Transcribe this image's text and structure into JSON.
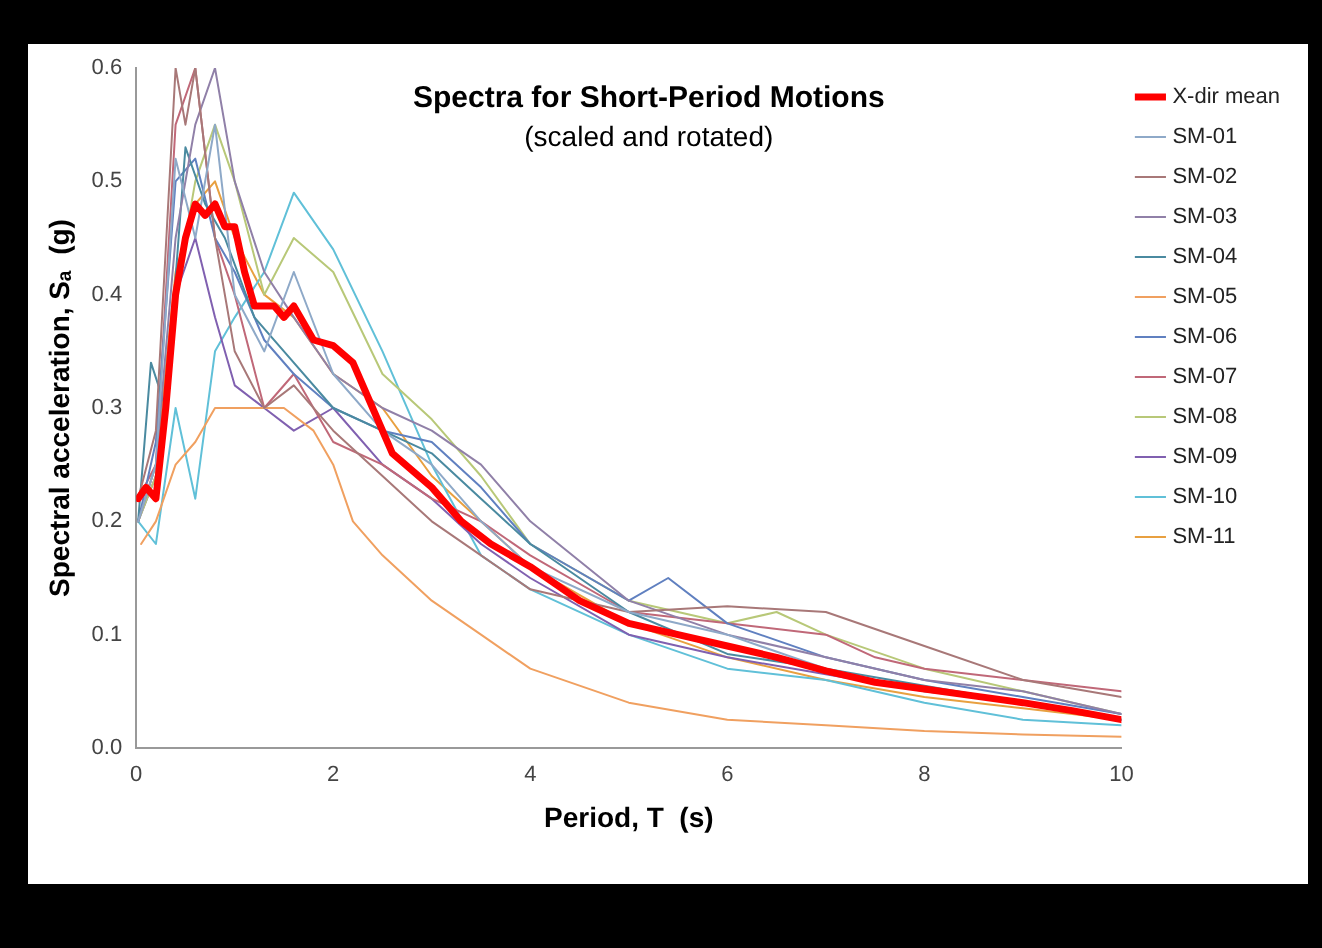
{
  "chart_data": {
    "type": "line",
    "title": "Spectra for Short-Period Motions",
    "subtitle": "(scaled and rotated)",
    "xlabel": "Period, T  (s)",
    "ylabel": "Spectral acceleration, Sₐ  (g)",
    "xlim": [
      0,
      10
    ],
    "xticks": [
      0,
      2,
      4,
      6,
      8,
      10
    ],
    "ylim": [
      0,
      0.6
    ],
    "yticks": [
      {
        "value": 0,
        "label": "0.0"
      },
      0.1,
      0.2,
      0.3,
      0.4,
      0.5,
      0.6
    ],
    "legend": "right",
    "marker": "none",
    "line_style": "solid",
    "grid": false,
    "series": [
      {
        "name": "X-dir mean",
        "color": "#ff0000",
        "x": [
          0.02,
          0.1,
          0.2,
          0.3,
          0.4,
          0.5,
          0.6,
          0.7,
          0.8,
          0.9,
          1.0,
          1.1,
          1.2,
          1.4,
          1.5,
          1.6,
          1.8,
          2.0,
          2.2,
          2.4,
          2.6,
          2.8,
          3.0,
          3.3,
          3.6,
          4.0,
          4.5,
          5.0,
          5.5,
          6.0,
          6.5,
          7.0,
          7.5,
          8.0,
          8.5,
          9.0,
          9.5,
          10
        ],
        "values": [
          0.22,
          0.23,
          0.22,
          0.3,
          0.4,
          0.45,
          0.48,
          0.47,
          0.48,
          0.46,
          0.46,
          0.42,
          0.39,
          0.39,
          0.38,
          0.39,
          0.36,
          0.355,
          0.34,
          0.3,
          0.26,
          0.245,
          0.23,
          0.2,
          0.18,
          0.16,
          0.13,
          0.11,
          0.1,
          0.09,
          0.08,
          0.068,
          0.058,
          0.052,
          0.046,
          0.04,
          0.033,
          0.025
        ]
      },
      {
        "name": "SM-01",
        "color": "#8ea9c8",
        "x": [
          0.02,
          0.2,
          0.4,
          0.6,
          0.8,
          1.0,
          1.3,
          1.6,
          2.0,
          2.5,
          3.0,
          3.5,
          4.0,
          5.0,
          6.0,
          7.0,
          8.0,
          9.0,
          10
        ],
        "values": [
          0.2,
          0.25,
          0.52,
          0.45,
          0.55,
          0.4,
          0.35,
          0.42,
          0.33,
          0.28,
          0.25,
          0.2,
          0.16,
          0.12,
          0.1,
          0.07,
          0.05,
          0.04,
          0.025
        ]
      },
      {
        "name": "SM-02",
        "color": "#a87878",
        "x": [
          0.02,
          0.2,
          0.4,
          0.5,
          0.6,
          0.8,
          1.0,
          1.3,
          1.6,
          2.0,
          2.5,
          3.0,
          3.5,
          4.0,
          5.0,
          6.0,
          7.0,
          8.0,
          9.0,
          10
        ],
        "values": [
          0.22,
          0.28,
          0.6,
          0.55,
          0.6,
          0.45,
          0.35,
          0.3,
          0.32,
          0.28,
          0.24,
          0.2,
          0.17,
          0.14,
          0.12,
          0.125,
          0.12,
          0.09,
          0.06,
          0.045
        ]
      },
      {
        "name": "SM-03",
        "color": "#9080a8",
        "x": [
          0.02,
          0.2,
          0.4,
          0.6,
          0.8,
          1.0,
          1.3,
          1.6,
          2.0,
          2.5,
          3.0,
          3.5,
          4.0,
          5.0,
          6.0,
          7.0,
          8.0,
          9.0,
          10
        ],
        "values": [
          0.2,
          0.25,
          0.45,
          0.55,
          0.6,
          0.5,
          0.42,
          0.38,
          0.33,
          0.3,
          0.28,
          0.25,
          0.2,
          0.13,
          0.1,
          0.08,
          0.06,
          0.05,
          0.03
        ]
      },
      {
        "name": "SM-04",
        "color": "#4a8aa0",
        "x": [
          0.02,
          0.15,
          0.3,
          0.5,
          0.7,
          0.9,
          1.2,
          1.5,
          2.0,
          2.5,
          3.0,
          3.5,
          4.0,
          5.0,
          6.0,
          7.0,
          8.0,
          9.0,
          10
        ],
        "values": [
          0.2,
          0.34,
          0.3,
          0.53,
          0.48,
          0.45,
          0.38,
          0.35,
          0.3,
          0.28,
          0.26,
          0.22,
          0.18,
          0.12,
          0.083,
          0.07,
          0.055,
          0.04,
          0.025
        ]
      },
      {
        "name": "SM-05",
        "color": "#f0a060",
        "x": [
          0.05,
          0.2,
          0.4,
          0.6,
          0.8,
          1.0,
          1.5,
          1.8,
          2.0,
          2.2,
          2.5,
          3.0,
          3.5,
          4.0,
          5.0,
          6.0,
          7.0,
          8.0,
          9.0,
          10
        ],
        "values": [
          0.18,
          0.2,
          0.25,
          0.27,
          0.3,
          0.3,
          0.3,
          0.28,
          0.25,
          0.2,
          0.17,
          0.13,
          0.1,
          0.07,
          0.04,
          0.025,
          0.02,
          0.015,
          0.012,
          0.01
        ]
      },
      {
        "name": "SM-06",
        "color": "#6080c0",
        "x": [
          0.02,
          0.2,
          0.4,
          0.6,
          0.8,
          1.0,
          1.3,
          1.6,
          2.0,
          2.5,
          3.0,
          3.5,
          4.0,
          5.0,
          5.4,
          6.0,
          7.0,
          8.0,
          9.0,
          10
        ],
        "values": [
          0.2,
          0.27,
          0.5,
          0.52,
          0.45,
          0.42,
          0.36,
          0.33,
          0.3,
          0.28,
          0.27,
          0.23,
          0.18,
          0.13,
          0.15,
          0.11,
          0.08,
          0.06,
          0.045,
          0.03
        ]
      },
      {
        "name": "SM-07",
        "color": "#c06878",
        "x": [
          0.02,
          0.2,
          0.4,
          0.6,
          0.8,
          1.0,
          1.3,
          1.6,
          2.0,
          2.5,
          3.0,
          3.5,
          4.0,
          5.0,
          6.0,
          7.0,
          7.5,
          8.0,
          9.0,
          10
        ],
        "values": [
          0.22,
          0.25,
          0.55,
          0.6,
          0.45,
          0.4,
          0.3,
          0.33,
          0.27,
          0.25,
          0.22,
          0.2,
          0.17,
          0.12,
          0.11,
          0.1,
          0.08,
          0.07,
          0.06,
          0.05
        ]
      },
      {
        "name": "SM-08",
        "color": "#b8c878",
        "x": [
          0.02,
          0.2,
          0.4,
          0.6,
          0.8,
          1.0,
          1.3,
          1.6,
          2.0,
          2.5,
          3.0,
          3.5,
          4.0,
          5.0,
          6.0,
          6.5,
          7.0,
          8.0,
          9.0,
          10
        ],
        "values": [
          0.2,
          0.24,
          0.4,
          0.5,
          0.55,
          0.5,
          0.4,
          0.45,
          0.42,
          0.33,
          0.29,
          0.24,
          0.18,
          0.13,
          0.11,
          0.12,
          0.1,
          0.07,
          0.05,
          0.03
        ]
      },
      {
        "name": "SM-09",
        "color": "#8060b0",
        "x": [
          0.02,
          0.2,
          0.4,
          0.6,
          0.8,
          1.0,
          1.3,
          1.6,
          2.0,
          2.5,
          3.0,
          3.5,
          4.0,
          5.0,
          6.0,
          7.0,
          8.0,
          9.0,
          10
        ],
        "values": [
          0.2,
          0.24,
          0.4,
          0.45,
          0.38,
          0.32,
          0.3,
          0.28,
          0.3,
          0.25,
          0.22,
          0.18,
          0.15,
          0.1,
          0.08,
          0.065,
          0.05,
          0.04,
          0.025
        ]
      },
      {
        "name": "SM-10",
        "color": "#60c0d8",
        "x": [
          0.02,
          0.2,
          0.4,
          0.6,
          0.8,
          1.0,
          1.3,
          1.6,
          2.0,
          2.5,
          3.0,
          3.5,
          4.0,
          5.0,
          6.0,
          7.0,
          8.0,
          9.0,
          10
        ],
        "values": [
          0.2,
          0.18,
          0.3,
          0.22,
          0.35,
          0.38,
          0.42,
          0.49,
          0.44,
          0.35,
          0.25,
          0.17,
          0.14,
          0.1,
          0.07,
          0.06,
          0.04,
          0.025,
          0.02
        ]
      },
      {
        "name": "SM-11",
        "color": "#e8a040",
        "x": [
          0.02,
          0.2,
          0.4,
          0.6,
          0.8,
          1.0,
          1.3,
          1.6,
          2.0,
          2.5,
          3.0,
          3.5,
          4.0,
          5.0,
          6.0,
          7.0,
          8.0,
          9.0,
          10
        ],
        "values": [
          0.2,
          0.25,
          0.42,
          0.48,
          0.5,
          0.45,
          0.4,
          0.38,
          0.33,
          0.3,
          0.24,
          0.2,
          0.16,
          0.11,
          0.08,
          0.06,
          0.045,
          0.035,
          0.025
        ]
      }
    ]
  }
}
